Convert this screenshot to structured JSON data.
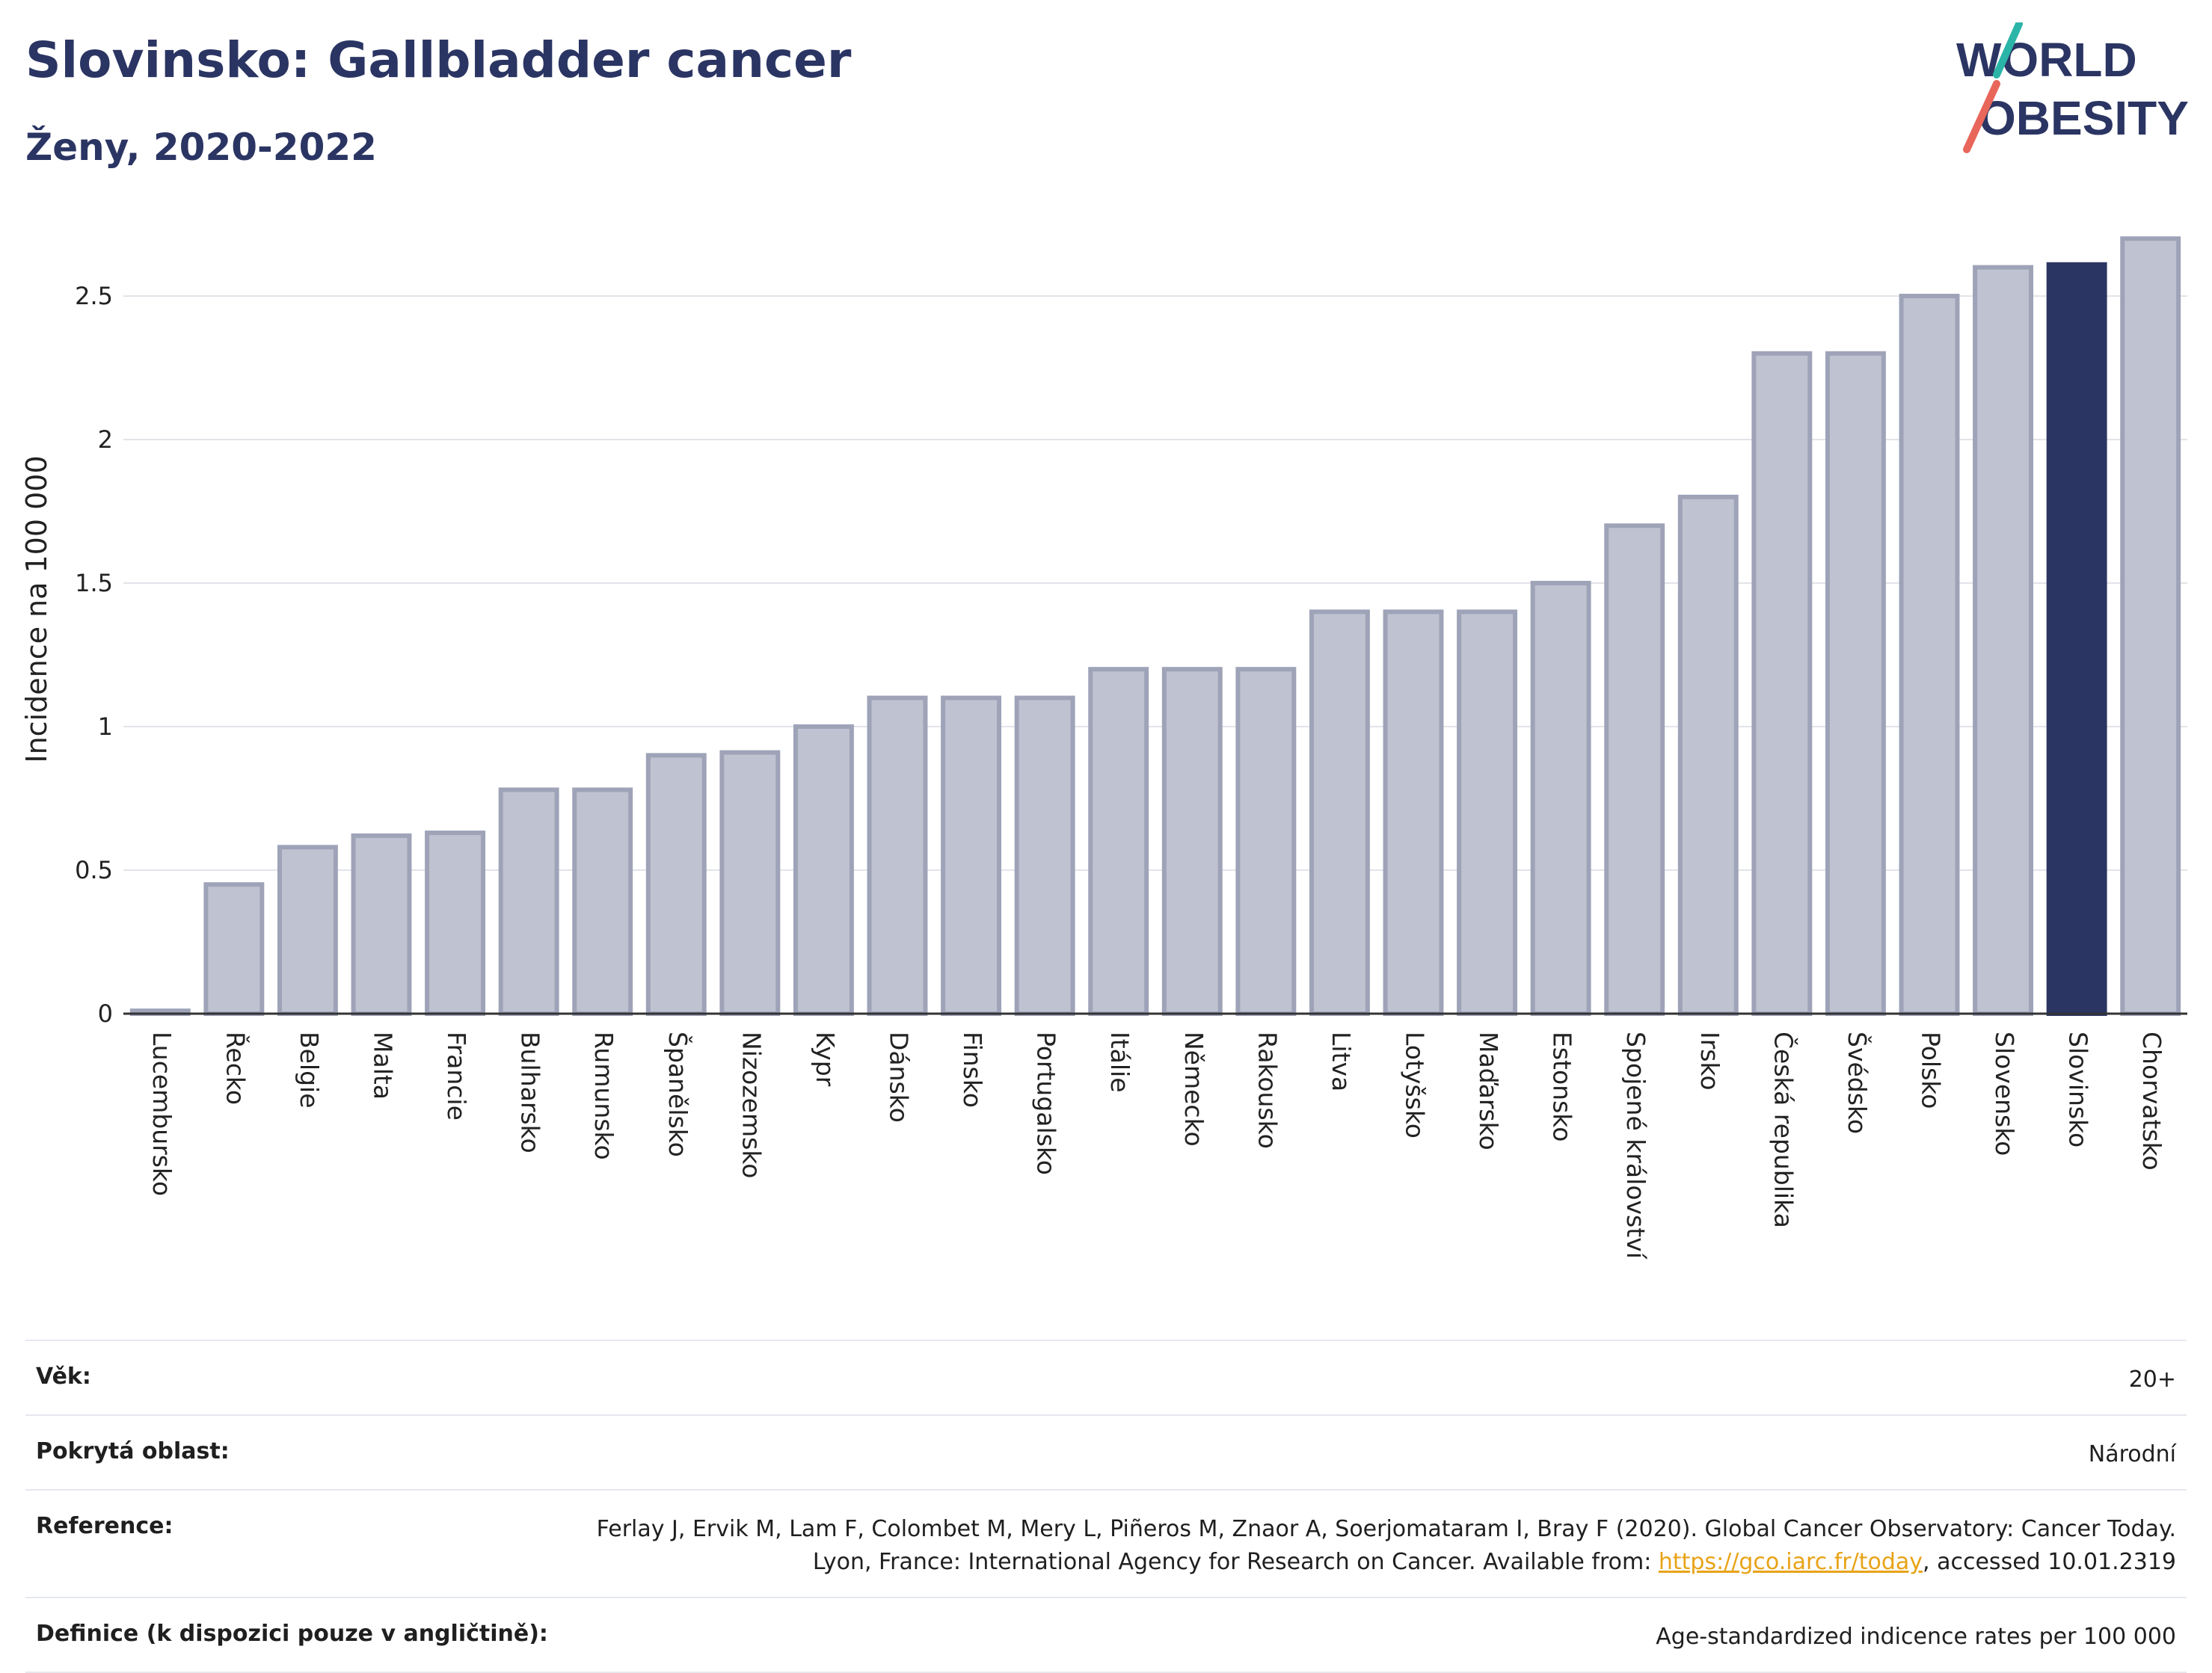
{
  "header": {
    "title": "Slovinsko: Gallbladder cancer",
    "subtitle": "Ženy, 2020-2022"
  },
  "logo": {
    "line1": "WORLD",
    "line2": "OBESITY",
    "colors": {
      "text": "#2b3563",
      "teal": "#2bb5a8",
      "coral": "#e8665a"
    }
  },
  "chart_data": {
    "type": "bar",
    "ylabel": "Incidence na 100 000",
    "ylim": [
      0,
      2.75
    ],
    "yticks": [
      0,
      0.5,
      1,
      1.5,
      2,
      2.5
    ],
    "grid": true,
    "categories": [
      "Lucembursko",
      "Řecko",
      "Belgie",
      "Malta",
      "Francie",
      "Bulharsko",
      "Rumunsko",
      "Španělsko",
      "Nizozemsko",
      "Kypr",
      "Dánsko",
      "Finsko",
      "Portugalsko",
      "Itálie",
      "Německo",
      "Rakousko",
      "Litva",
      "Lotyšsko",
      "Maďarsko",
      "Estonsko",
      "Spojené království",
      "Irsko",
      "Česká republika",
      "Švédsko",
      "Polsko",
      "Slovensko",
      "Slovinsko",
      "Chorvatsko"
    ],
    "values": [
      0.01,
      0.45,
      0.58,
      0.62,
      0.63,
      0.78,
      0.78,
      0.9,
      0.91,
      1.0,
      1.1,
      1.1,
      1.1,
      1.2,
      1.2,
      1.2,
      1.4,
      1.4,
      1.4,
      1.5,
      1.7,
      1.8,
      2.3,
      2.3,
      2.5,
      2.6,
      2.61,
      2.7
    ],
    "highlight": "Slovinsko",
    "colors": {
      "bar": "#bfc2d0",
      "bar_edge": "#9ea3b8",
      "highlight": "#2b3563",
      "grid": "#e3e4ea",
      "axis": "#333333"
    }
  },
  "info": {
    "age_label": "Věk:",
    "age_value": "20+",
    "area_label": "Pokrytá oblast:",
    "area_value": "Národní",
    "ref_label": "Reference:",
    "ref_text_1": "Ferlay J, Ervik M, Lam F, Colombet M, Mery L, Piñeros M, Znaor A, Soerjomataram I, Bray F (2020). Global Cancer Observatory: Cancer Today. Lyon, France: International Agency for Research on Cancer. Available from: ",
    "ref_link": "https://gco.iarc.fr/today",
    "ref_text_2": ", accessed 10.01.2319",
    "def_label": "Definice (k dispozici pouze v angličtině):",
    "def_value": "Age-standardized indicence rates per 100 000"
  }
}
